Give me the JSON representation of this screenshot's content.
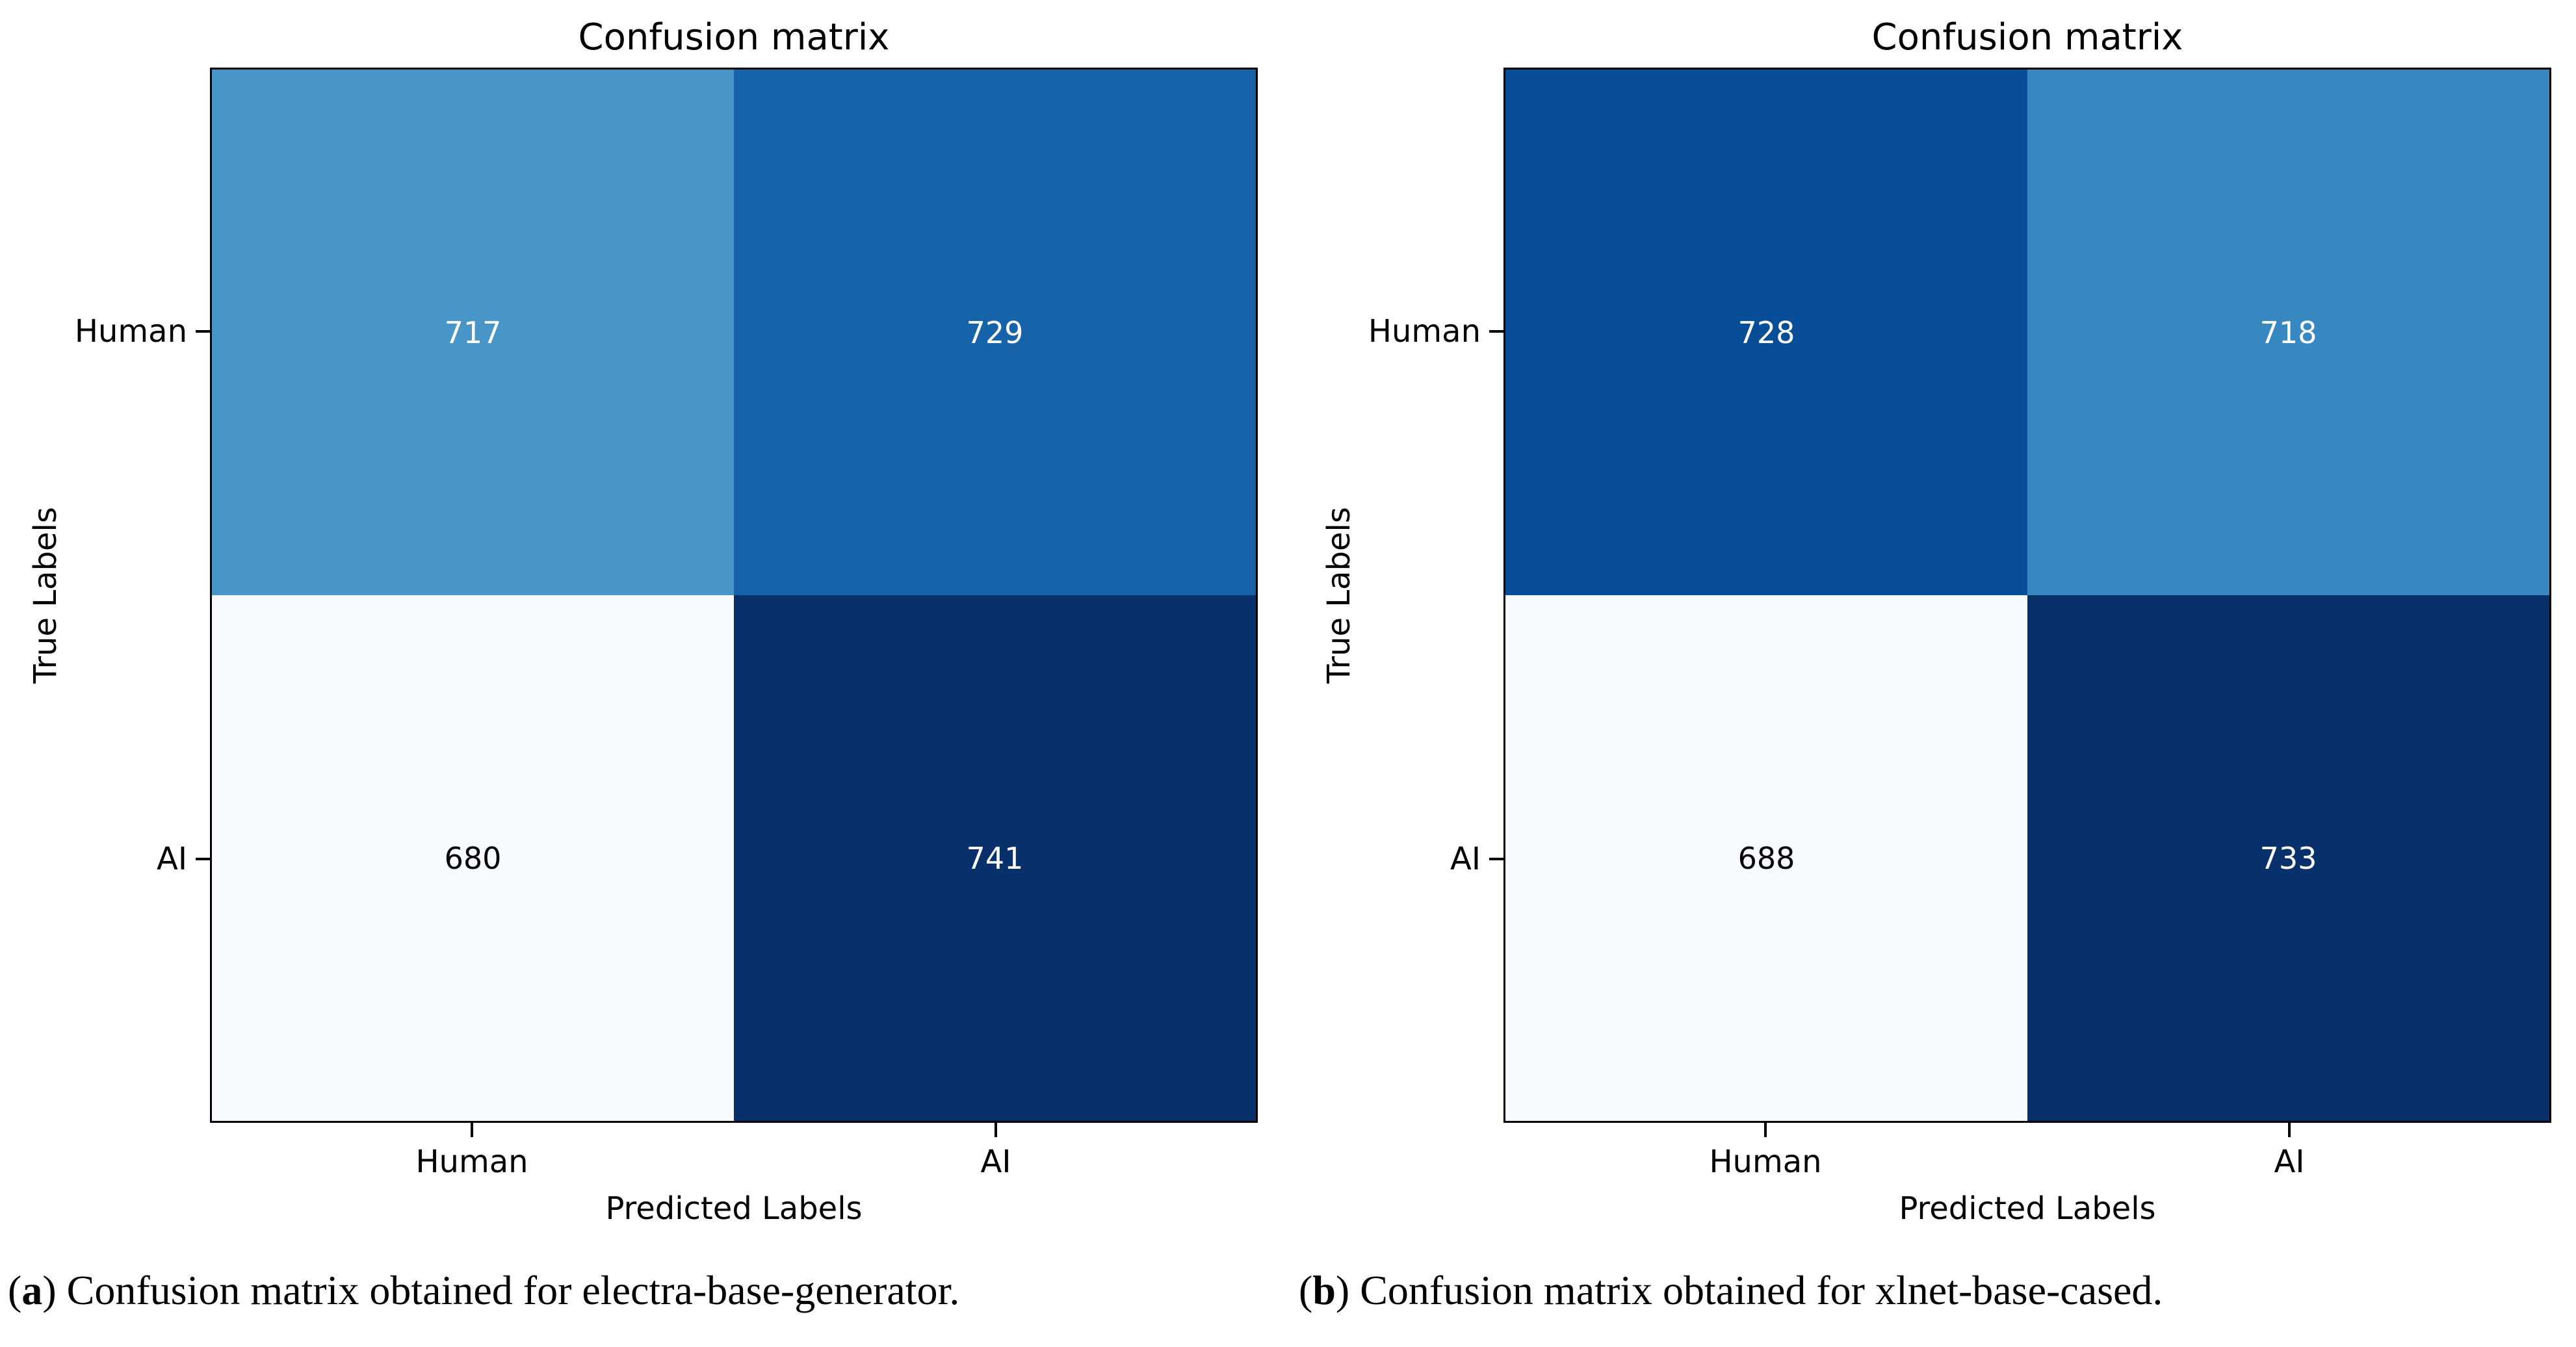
{
  "page": {
    "background": "#ffffff"
  },
  "chart_data": [
    {
      "type": "heatmap",
      "panel": "a",
      "title": "Confusion matrix",
      "xlabel": "Predicted Labels",
      "ylabel": "True Labels",
      "x_categories": [
        "Human",
        "AI"
      ],
      "y_categories": [
        "Human",
        "AI"
      ],
      "values": [
        [
          717,
          729
        ],
        [
          680,
          741
        ]
      ],
      "colormap": "Blues",
      "color_scale": {
        "min": 680,
        "max": 741,
        "min_color": "#f7fbff",
        "max_color": "#08306b"
      },
      "cells": [
        {
          "true_label": "Human",
          "predicted_label": "Human",
          "value": 717,
          "color": "#4896c8",
          "text_color": "#ffffff"
        },
        {
          "true_label": "Human",
          "predicted_label": "AI",
          "value": 729,
          "color": "#1663aa",
          "text_color": "#ffffff"
        },
        {
          "true_label": "AI",
          "predicted_label": "Human",
          "value": 680,
          "color": "#f7fbff",
          "text_color": "#000000"
        },
        {
          "true_label": "AI",
          "predicted_label": "AI",
          "value": 741,
          "color": "#08306b",
          "text_color": "#ffffff"
        }
      ],
      "caption": {
        "open": "(",
        "label": "a",
        "close": ")",
        "text": " Confusion matrix obtained for electra-base-generator."
      }
    },
    {
      "type": "heatmap",
      "panel": "b",
      "title": "Confusion matrix",
      "xlabel": "Predicted Labels",
      "ylabel": "True Labels",
      "x_categories": [
        "Human",
        "AI"
      ],
      "y_categories": [
        "Human",
        "AI"
      ],
      "values": [
        [
          728,
          718
        ],
        [
          688,
          733
        ]
      ],
      "colormap": "Blues",
      "color_scale": {
        "min": 688,
        "max": 733,
        "min_color": "#f7fbff",
        "max_color": "#08306b"
      },
      "cells": [
        {
          "true_label": "Human",
          "predicted_label": "Human",
          "value": 728,
          "color": "#084d97",
          "text_color": "#ffffff"
        },
        {
          "true_label": "Human",
          "predicted_label": "AI",
          "value": 718,
          "color": "#3787c0",
          "text_color": "#ffffff"
        },
        {
          "true_label": "AI",
          "predicted_label": "Human",
          "value": 688,
          "color": "#f7fbff",
          "text_color": "#000000"
        },
        {
          "true_label": "AI",
          "predicted_label": "AI",
          "value": 733,
          "color": "#08306b",
          "text_color": "#ffffff"
        }
      ],
      "caption": {
        "open": "(",
        "label": "b",
        "close": ")",
        "text": " Confusion matrix obtained for xlnet-base-cased."
      }
    }
  ]
}
